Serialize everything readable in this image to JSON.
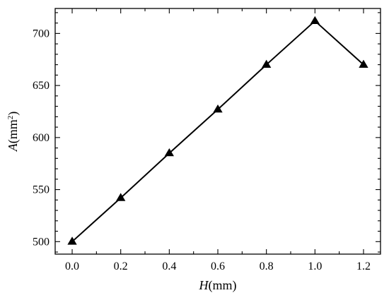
{
  "chart_data": {
    "type": "line",
    "x": [
      0.0,
      0.2,
      0.4,
      0.6,
      0.8,
      1.0,
      1.2
    ],
    "series": [
      {
        "values": [
          500,
          542,
          585,
          627,
          670,
          712,
          670
        ]
      }
    ],
    "xlabel": {
      "italic": "H",
      "rest": "(mm)"
    },
    "ylabel": {
      "italic": "A",
      "pre": "(mm",
      "sup": "2",
      "post": ")"
    },
    "xticks": [
      "0.0",
      "0.2",
      "0.4",
      "0.6",
      "0.8",
      "1.0",
      "1.2"
    ],
    "yticks": [
      "500",
      "550",
      "600",
      "650",
      "700"
    ],
    "xlim": [
      -0.07,
      1.27
    ],
    "ylim": [
      488,
      724
    ],
    "marker": "triangle",
    "grid": false,
    "color": "#000000"
  }
}
